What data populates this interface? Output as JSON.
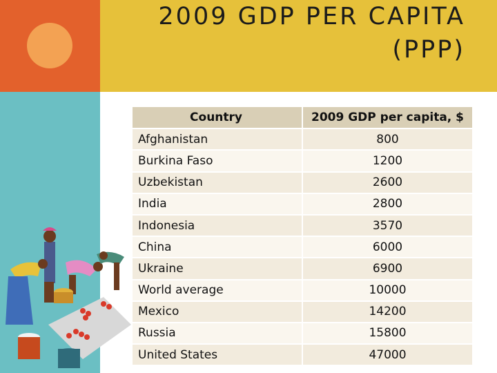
{
  "title": {
    "line1": "2009 GDP PER CAPITA",
    "line2": "(PPP)"
  },
  "table": {
    "headers": [
      "Country",
      "2009 GDP per capita, $"
    ],
    "rows": [
      {
        "country": "Afghanistan",
        "value": "800"
      },
      {
        "country": "Burkina Faso",
        "value": "1200"
      },
      {
        "country": "Uzbekistan",
        "value": "2600"
      },
      {
        "country": "India",
        "value": "2800"
      },
      {
        "country": "Indonesia",
        "value": "3570"
      },
      {
        "country": "China",
        "value": "6000"
      },
      {
        "country": "Ukraine",
        "value": "6900"
      },
      {
        "country": "World average",
        "value": "10000"
      },
      {
        "country": "Mexico",
        "value": "14200"
      },
      {
        "country": "Russia",
        "value": "15800"
      },
      {
        "country": "United States",
        "value": "47000"
      }
    ]
  },
  "colors": {
    "orange": "#e3612c",
    "light_orange": "#f3a253",
    "gold": "#e6c13a",
    "teal": "#6bbfc3",
    "header_bg": "#d9cfb6",
    "row_odd": "#f2ebdd",
    "row_even": "#faf6ee"
  },
  "illustration": "market-women-clipart"
}
